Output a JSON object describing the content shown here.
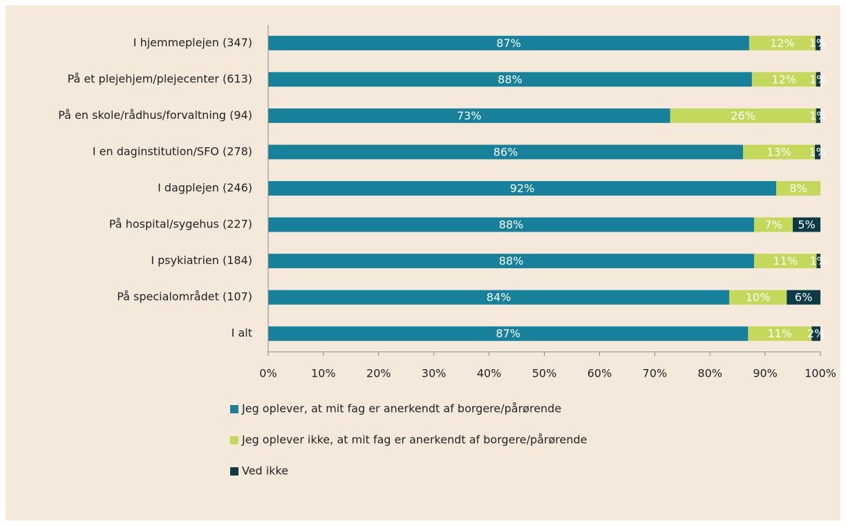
{
  "chart_data": {
    "type": "stacked_barh",
    "categories": [
      "I hjemmeplejen (347)",
      "På et plejehjem/plejecenter (613)",
      "På en skole/rådhus/forvaltning (94)",
      "I en daginstitution/SFO (278)",
      "I dagplejen (246)",
      "På hospital/sygehus (227)",
      "I psykiatrien (184)",
      "På specialområdet (107)",
      "I alt"
    ],
    "series": [
      {
        "name": "Jeg oplever, at mit fag er anerkendt af borgere/pårørende",
        "color": "#17819b",
        "values": [
          87.1,
          87.6,
          72.8,
          86.0,
          92.0,
          88.0,
          88.0,
          83.5,
          86.9
        ],
        "value_labels": [
          "87%",
          "88%",
          "73%",
          "86%",
          "92%",
          "88%",
          "88%",
          "84%",
          "87%"
        ]
      },
      {
        "name": "Jeg oplever ikke, at mit fag er anerkendt af borgere/pårørende",
        "color": "#c4d95b",
        "values": [
          12.0,
          11.6,
          26.4,
          13.0,
          8.0,
          7.0,
          11.3,
          10.4,
          11.5
        ],
        "value_labels": [
          "12%",
          "12%",
          "26%",
          "13%",
          "8%",
          "7%",
          "11%",
          "10%",
          "11%"
        ]
      },
      {
        "name": "Ved ikke",
        "color": "#0d3a47",
        "values": [
          0.9,
          0.8,
          0.8,
          1.0,
          0,
          5.0,
          0.7,
          6.1,
          1.6
        ],
        "value_labels": [
          "1%",
          "1%",
          "1%",
          "1%",
          null,
          "5%",
          "1%",
          "6%",
          "2%"
        ]
      }
    ],
    "xlim": [
      0,
      100
    ],
    "xticks": [
      {
        "value": 0,
        "label": "0%"
      },
      {
        "value": 10,
        "label": "10%"
      },
      {
        "value": 20,
        "label": "20%"
      },
      {
        "value": 30,
        "label": "30%"
      },
      {
        "value": 40,
        "label": "40%"
      },
      {
        "value": 50,
        "label": "50%"
      },
      {
        "value": 60,
        "label": "60%"
      },
      {
        "value": 70,
        "label": "70%"
      },
      {
        "value": 80,
        "label": "80%"
      },
      {
        "value": 90,
        "label": "90%"
      },
      {
        "value": 100,
        "label": "100%"
      }
    ],
    "legend": "bottom-left"
  }
}
